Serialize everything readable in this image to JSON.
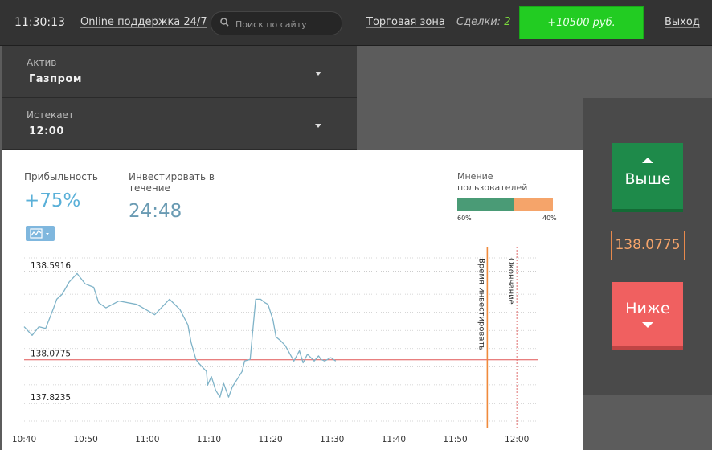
{
  "topbar": {
    "time": "11:30:13",
    "support": "Online поддержка 24/7",
    "search_placeholder": "Поиск по сайту",
    "trade_zone": "Торговая зона",
    "deals_label": "Сделки:",
    "deals_count": "2",
    "balance": "+10500 руб.",
    "exit": "Выход"
  },
  "asset": {
    "label": "Актив",
    "value": "Газпром"
  },
  "expiry": {
    "label": "Истекает",
    "value": "12:00"
  },
  "stats": {
    "profit_label": "Прибыльность",
    "profit_value": "+75%",
    "invest_label": "Инвестировать в течение",
    "invest_value": "24:48"
  },
  "opinion": {
    "label": "Мнение пользователей",
    "up_pct": "60%",
    "down_pct": "40%",
    "up_fraction": 0.6,
    "up_color": "#4a9b76",
    "down_color": "#f5a46a"
  },
  "actions": {
    "up_label": "Выше",
    "down_label": "Ниже",
    "current_price": "138.0775"
  },
  "chart_data": {
    "type": "line",
    "x_ticks": [
      "10:40",
      "10:50",
      "11:00",
      "11:10",
      "11:20",
      "11:30",
      "11:40",
      "11:50",
      "12:00"
    ],
    "price_labels": [
      "138.5916",
      "138.0775",
      "137.8235"
    ],
    "ylim": [
      137.73,
      138.68
    ],
    "xlim_minutes": [
      640,
      723.5
    ],
    "current_price": 138.0775,
    "vlines": [
      {
        "label": "Время инвестировать",
        "x_minutes": 715.2,
        "color": "#f08a3c"
      },
      {
        "label": "Окончание",
        "x_minutes": 720,
        "color": "#e07070"
      }
    ],
    "series": [
      {
        "x_minutes": [
          640.0,
          641.3,
          642.4,
          643.5,
          644.8,
          645.3,
          646.2,
          647.3,
          648.6,
          649.9,
          651.3,
          652.1,
          653.3,
          655.4,
          658.3,
          661.2,
          663.6,
          665.3,
          666.6,
          667.1,
          667.9,
          668.3,
          669.6,
          669.8,
          670.4,
          671.1,
          671.8,
          672.4,
          673.2,
          673.8,
          674.7,
          675.4,
          675.8,
          676.7,
          677.1,
          677.6,
          678.4,
          679.1,
          679.6,
          680.4,
          680.9,
          681.6,
          682.4,
          683.8,
          684.7,
          685.3,
          686.0,
          687.1,
          687.8,
          688.2,
          688.8,
          689.8,
          690.6
        ],
        "values": [
          138.27,
          138.22,
          138.27,
          138.26,
          138.38,
          138.43,
          138.46,
          138.53,
          138.58,
          138.52,
          138.5,
          138.41,
          138.38,
          138.42,
          138.4,
          138.34,
          138.43,
          138.37,
          138.28,
          138.18,
          138.08,
          138.06,
          138.01,
          137.93,
          137.98,
          137.9,
          137.86,
          137.94,
          137.86,
          137.92,
          137.97,
          138.01,
          138.07,
          138.08,
          138.24,
          138.43,
          138.43,
          138.41,
          138.4,
          138.31,
          138.21,
          138.19,
          138.16,
          138.07,
          138.13,
          138.06,
          138.11,
          138.07,
          138.1,
          138.08,
          138.07,
          138.09,
          138.07
        ]
      }
    ]
  }
}
